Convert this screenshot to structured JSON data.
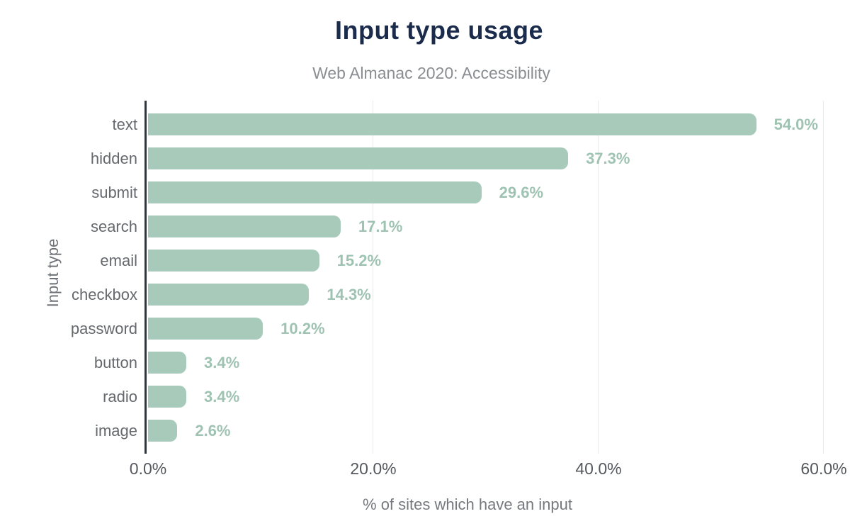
{
  "chart_data": {
    "type": "bar",
    "orientation": "horizontal",
    "title": "Input type usage",
    "subtitle": "Web Almanac 2020: Accessibility",
    "xlabel": "% of sites which have an input",
    "ylabel": "Input type",
    "categories": [
      "text",
      "hidden",
      "submit",
      "search",
      "email",
      "checkbox",
      "password",
      "button",
      "radio",
      "image"
    ],
    "values": [
      54.0,
      37.3,
      29.6,
      17.1,
      15.2,
      14.3,
      10.2,
      3.4,
      3.4,
      2.6
    ],
    "value_labels": [
      "54.0%",
      "37.3%",
      "29.6%",
      "17.1%",
      "15.2%",
      "14.3%",
      "10.2%",
      "3.4%",
      "3.4%",
      "2.6%"
    ],
    "x_ticks": [
      {
        "label": "0.0%",
        "value": 0
      },
      {
        "label": "20.0%",
        "value": 20
      },
      {
        "label": "40.0%",
        "value": 40
      },
      {
        "label": "60.0%",
        "value": 60
      }
    ],
    "xlim": [
      0,
      60
    ],
    "grid": "vertical-lines-at-ticks",
    "legend": "none",
    "colors": {
      "bar": "#a8cabb",
      "value_label": "#9fc3b2",
      "title": "#1b2b4b",
      "subtitle": "#8a8e92",
      "category_label": "#65696e",
      "tick_label": "#55595e",
      "axis_title": "#6e7277",
      "axis_line": "#32373c",
      "gridline": "#e9ebea",
      "background": "#ffffff"
    }
  }
}
